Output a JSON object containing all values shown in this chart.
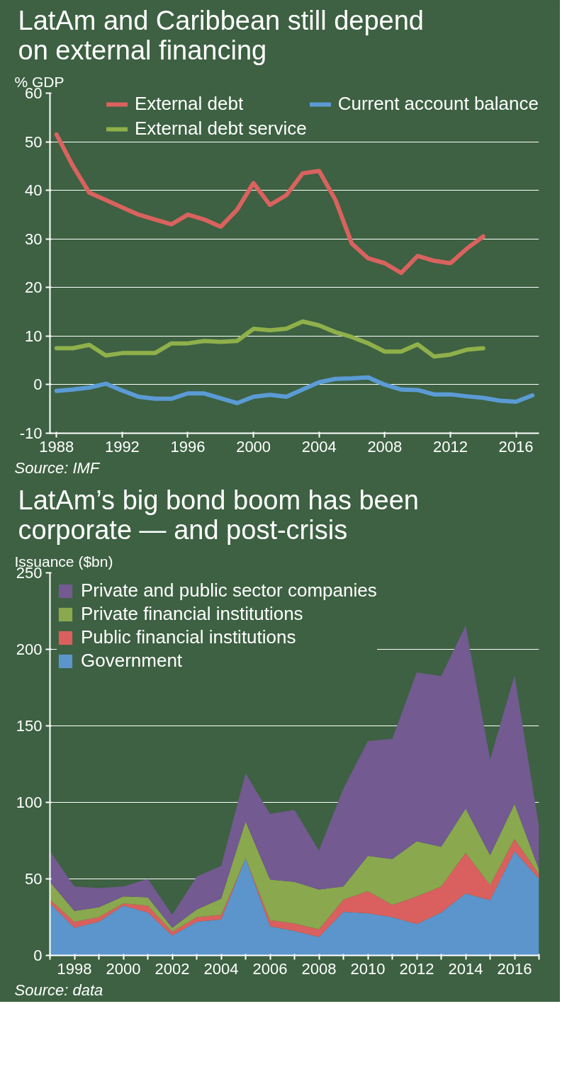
{
  "chart_data": [
    {
      "type": "line",
      "title": "LatAm and Caribbean still depend on external financing",
      "ylabel": "% GDP",
      "series": [
        {
          "name": "External debt",
          "color": "#d9625f",
          "x": [
            1988,
            1989,
            1990,
            1991,
            1992,
            1993,
            1994,
            1995,
            1996,
            1997,
            1998,
            1999,
            2000,
            2001,
            2002,
            2003,
            2004,
            2005,
            2006,
            2007,
            2008,
            2009,
            2010,
            2011,
            2012,
            2013,
            2014
          ],
          "values": [
            51.5,
            45,
            39.5,
            38,
            36.5,
            35,
            34,
            33,
            35,
            34,
            32.5,
            36,
            41.5,
            37,
            39,
            43.5,
            44,
            38,
            29,
            26,
            25,
            23,
            26.5,
            25.5,
            25,
            28,
            30.5
          ]
        },
        {
          "name": "Current account balance",
          "color": "#5b9bd5",
          "x": [
            1988,
            1989,
            1990,
            1991,
            1992,
            1993,
            1994,
            1995,
            1996,
            1997,
            1998,
            1999,
            2000,
            2001,
            2002,
            2003,
            2004,
            2005,
            2006,
            2007,
            2008,
            2009,
            2010,
            2011,
            2012,
            2013,
            2014,
            2015,
            2016,
            2017
          ],
          "values": [
            -1.3,
            -1,
            -0.6,
            0.2,
            -1.2,
            -2.5,
            -2.9,
            -2.9,
            -1.8,
            -1.8,
            -2.8,
            -3.8,
            -2.5,
            -2.1,
            -2.5,
            -1,
            0.5,
            1.2,
            1.3,
            1.5,
            0,
            -1,
            -1.1,
            -2,
            -2,
            -2.4,
            -2.7,
            -3.3,
            -3.5,
            -2.2
          ]
        },
        {
          "name": "External debt service",
          "color": "#8fb04a",
          "x": [
            1988,
            1989,
            1990,
            1991,
            1992,
            1993,
            1994,
            1995,
            1996,
            1997,
            1998,
            1999,
            2000,
            2001,
            2002,
            2003,
            2004,
            2005,
            2006,
            2007,
            2008,
            2009,
            2010,
            2011,
            2012,
            2013,
            2014
          ],
          "values": [
            7.5,
            7.5,
            8.2,
            6,
            6.5,
            6.5,
            6.5,
            8.5,
            8.5,
            9,
            8.8,
            9,
            11.5,
            11.2,
            11.5,
            13,
            12.2,
            10.8,
            9.8,
            8.5,
            6.8,
            6.8,
            8.3,
            5.8,
            6.2,
            7.2,
            7.5
          ]
        }
      ],
      "xlim": [
        1987.6,
        2017.4
      ],
      "xticks": [
        1988,
        1992,
        1996,
        2000,
        2004,
        2008,
        2012,
        2016
      ],
      "ylim": [
        -10,
        60
      ],
      "yticks": [
        -10,
        0,
        10,
        20,
        30,
        40,
        50,
        60
      ],
      "grid": "y",
      "legend": "top",
      "annotations": [
        "Source: IMF"
      ]
    },
    {
      "type": "area",
      "stacked": true,
      "title": "LatAm’s big bond boom has been corporate — and post-crisis",
      "ylabel": "Issuance ($bn)",
      "x": [
        1997,
        1998,
        1999,
        2000,
        2001,
        2002,
        2003,
        2004,
        2005,
        2006,
        2007,
        2008,
        2009,
        2010,
        2011,
        2012,
        2013,
        2014,
        2015,
        2016,
        2017
      ],
      "series": [
        {
          "name": "Government",
          "color": "#5b95cc",
          "values": [
            34,
            18,
            22,
            32.5,
            28,
            13,
            22,
            23.5,
            63.5,
            19,
            16,
            12,
            28.5,
            27.5,
            25,
            20.5,
            28,
            40.5,
            36,
            68,
            50
          ]
        },
        {
          "name": "Public financial institutions",
          "color": "#d9605e",
          "values": [
            2.5,
            4,
            3,
            1.5,
            4.5,
            2.5,
            3,
            3,
            0,
            4,
            5,
            5,
            8,
            14.5,
            8,
            18,
            17,
            26.5,
            10,
            8,
            3
          ]
        },
        {
          "name": "Private financial institutions",
          "color": "#8aa84e",
          "values": [
            11.5,
            7,
            6.5,
            4.5,
            5.5,
            2.5,
            5,
            10.5,
            24,
            26.5,
            27,
            26,
            8.5,
            23,
            30,
            36,
            26,
            29,
            19.5,
            23,
            3
          ]
        },
        {
          "name": "Private and public sector companies",
          "color": "#735a91",
          "values": [
            20,
            16,
            12.5,
            6.5,
            12,
            8.5,
            21.5,
            21.5,
            31.5,
            43,
            47,
            25.5,
            64,
            75,
            78.5,
            110.5,
            111.5,
            119.5,
            62.5,
            84,
            28
          ]
        }
      ],
      "xlim": [
        1997,
        2017
      ],
      "xticks": [
        {
          "value": 1997,
          "label": null
        },
        1998,
        {
          "value": 1999,
          "label": null
        },
        2000,
        {
          "value": 2001,
          "label": null
        },
        2002,
        {
          "value": 2003,
          "label": null
        },
        2004,
        {
          "value": 2005,
          "label": null
        },
        2006,
        {
          "value": 2007,
          "label": null
        },
        2008,
        {
          "value": 2009,
          "label": null
        },
        2010,
        {
          "value": 2011,
          "label": null
        },
        2012,
        {
          "value": 2013,
          "label": null
        },
        2014,
        {
          "value": 2015,
          "label": null
        },
        2016,
        {
          "value": 2017,
          "label": null
        }
      ],
      "ylim": [
        0,
        250
      ],
      "yticks": [
        0,
        50,
        100,
        150,
        200,
        250
      ],
      "grid": "y",
      "legend": "top left",
      "annotations": [
        "Source: data"
      ]
    }
  ]
}
